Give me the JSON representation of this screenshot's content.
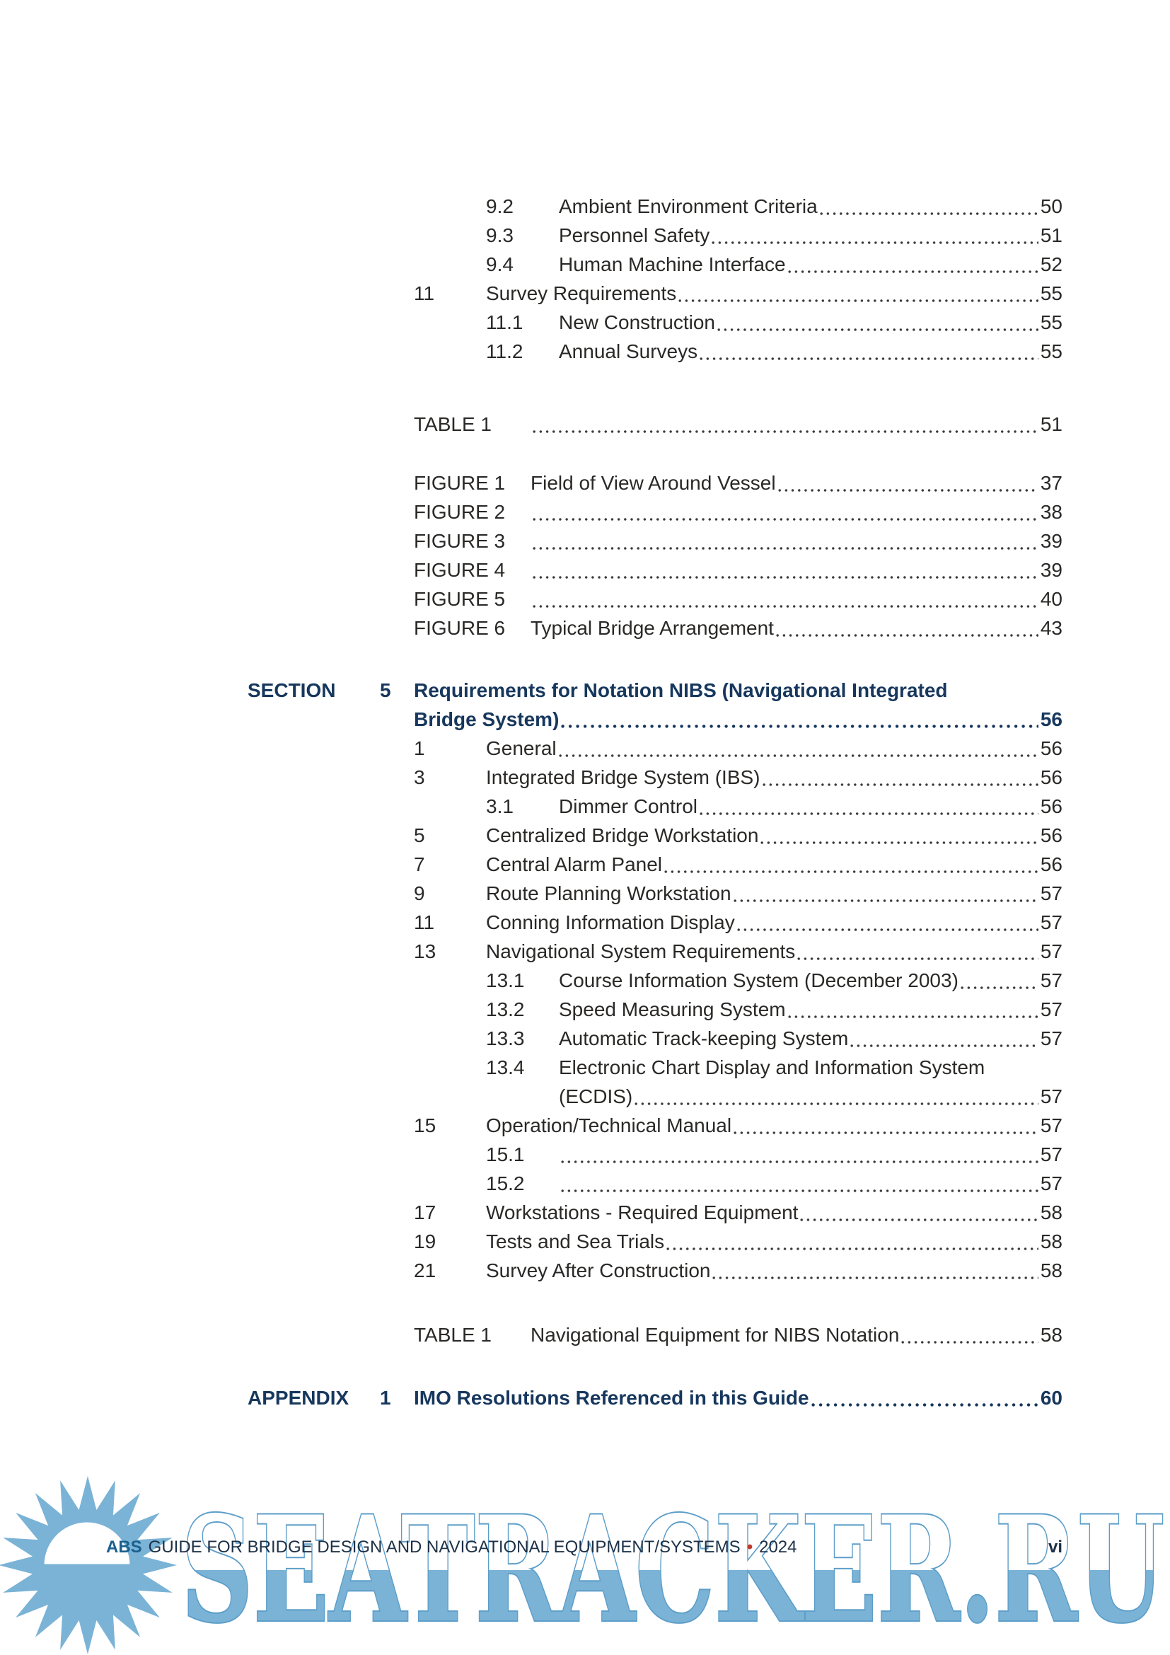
{
  "colors": {
    "heading_navy": "#17375d",
    "body_text": "#2a2927",
    "footer_navy": "#1d3147",
    "brand_blue": "#1a608f",
    "bullet_red": "#c03a2b",
    "watermark_blue": "#7ab3d6"
  },
  "watermark": {
    "text": "SEATRACKER.RU"
  },
  "footer": {
    "brand": "ABS",
    "title": "GUIDE FOR BRIDGE DESIGN AND NAVIGATIONAL EQUIPMENT/SYSTEMS",
    "separator": "•",
    "year": "2024",
    "page_number": "vi"
  },
  "toc": {
    "blocks": [
      {
        "kind": "l2",
        "num": "9.2",
        "title": "Ambient Environment Criteria",
        "page": "50"
      },
      {
        "kind": "l2",
        "num": "9.3",
        "title": "Personnel Safety",
        "page": "51"
      },
      {
        "kind": "l2",
        "num": "9.4",
        "title": "Human Machine Interface",
        "page": "52"
      },
      {
        "kind": "l1",
        "num": "11",
        "title": "Survey Requirements",
        "page": "55"
      },
      {
        "kind": "l2",
        "num": "11.1",
        "title": "New Construction",
        "page": "55"
      },
      {
        "kind": "l2",
        "num": "11.2",
        "title": "Annual Surveys",
        "page": "55"
      },
      {
        "kind": "spacer",
        "h": 62
      },
      {
        "kind": "fig",
        "label": "TABLE 1",
        "title": "",
        "page": "51"
      },
      {
        "kind": "spacer",
        "h": 42
      },
      {
        "kind": "fig",
        "label": "FIGURE 1",
        "title": "Field of View Around Vessel",
        "page": "37"
      },
      {
        "kind": "fig",
        "label": "FIGURE 2",
        "title": "",
        "page": "38"
      },
      {
        "kind": "fig",
        "label": "FIGURE 3",
        "title": "",
        "page": "39"
      },
      {
        "kind": "fig",
        "label": "FIGURE 4",
        "title": "",
        "page": "39"
      },
      {
        "kind": "fig",
        "label": "FIGURE 5",
        "title": "",
        "page": "40"
      },
      {
        "kind": "fig",
        "label": "FIGURE 6",
        "title": "Typical Bridge Arrangement",
        "page": "43"
      },
      {
        "kind": "spacer",
        "h": 47
      },
      {
        "kind": "section",
        "label": "SECTION",
        "num": "5",
        "line1": "Requirements for Notation NIBS (Navigational Integrated",
        "line2": "Bridge System)",
        "page": "56"
      },
      {
        "kind": "l1",
        "num": "1",
        "title": "General",
        "page": "56"
      },
      {
        "kind": "l1",
        "num": "3",
        "title": "Integrated Bridge System (IBS)",
        "page": "56"
      },
      {
        "kind": "l2",
        "num": "3.1",
        "title": "Dimmer Control",
        "page": "56"
      },
      {
        "kind": "l1",
        "num": "5",
        "title": "Centralized Bridge Workstation",
        "page": "56"
      },
      {
        "kind": "l1",
        "num": "7",
        "title": "Central Alarm Panel",
        "page": "56"
      },
      {
        "kind": "l1",
        "num": "9",
        "title": "Route Planning Workstation",
        "page": "57"
      },
      {
        "kind": "l1",
        "num": "11",
        "title": "Conning Information Display",
        "page": "57"
      },
      {
        "kind": "l1",
        "num": "13",
        "title": "Navigational System Requirements",
        "page": "57"
      },
      {
        "kind": "l2",
        "num": "13.1",
        "title": "Course Information System (December 2003)",
        "page": "57"
      },
      {
        "kind": "l2",
        "num": "13.2",
        "title": "Speed Measuring System",
        "page": "57"
      },
      {
        "kind": "l2",
        "num": "13.3",
        "title": "Automatic Track-keeping System",
        "page": "57"
      },
      {
        "kind": "l2w",
        "num": "13.4",
        "line1": "Electronic Chart Display and Information System",
        "line2": "(ECDIS)",
        "page": "57"
      },
      {
        "kind": "l1",
        "num": "15",
        "title": "Operation/Technical Manual",
        "page": "57"
      },
      {
        "kind": "l2",
        "num": "15.1",
        "title": "",
        "page": "57"
      },
      {
        "kind": "l2",
        "num": "15.2",
        "title": "",
        "page": "57"
      },
      {
        "kind": "l1",
        "num": "17",
        "title": "Workstations - Required Equipment",
        "page": "58"
      },
      {
        "kind": "l1",
        "num": "19",
        "title": "Tests and Sea Trials",
        "page": "58"
      },
      {
        "kind": "l1",
        "num": "21",
        "title": "Survey After Construction",
        "page": "58"
      },
      {
        "kind": "spacer",
        "h": 50
      },
      {
        "kind": "fig",
        "label": "TABLE 1",
        "title": "Navigational Equipment for NIBS Notation",
        "page": "58"
      },
      {
        "kind": "spacer",
        "h": 48
      },
      {
        "kind": "appendix",
        "label": "APPENDIX",
        "num": "1",
        "line2": "IMO Resolutions Referenced in this Guide",
        "page": "60"
      }
    ]
  }
}
